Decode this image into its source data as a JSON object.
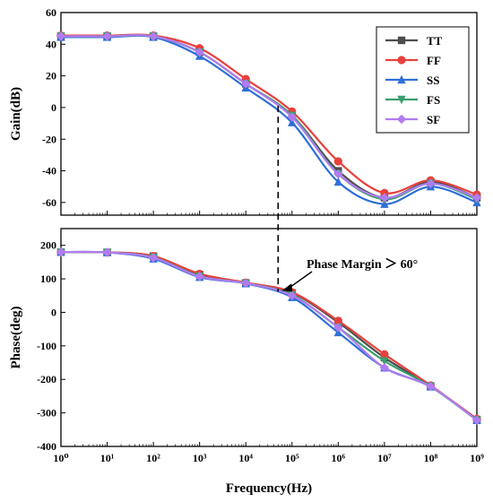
{
  "chart_data": [
    {
      "type": "line",
      "panel": "gain",
      "ylabel": "Gain(dB)",
      "xlabel": "",
      "xscale": "log",
      "xlim": [
        1,
        1000000000
      ],
      "ylim": [
        -68,
        60
      ],
      "yticks": [
        60,
        40,
        20,
        0,
        -20,
        -40,
        -60
      ],
      "legend_position": "top-right",
      "series": [
        {
          "name": "TT",
          "color": "#4d4d4d",
          "marker": "square",
          "x": [
            1,
            10,
            100,
            1000,
            10000,
            100000,
            1000000,
            10000000,
            100000000,
            1000000000
          ],
          "y": [
            45,
            45,
            45,
            35,
            15,
            -5,
            -40,
            -57,
            -47,
            -57
          ]
        },
        {
          "name": "FF",
          "color": "#e8413c",
          "marker": "circle",
          "x": [
            1,
            10,
            100,
            1000,
            10000,
            100000,
            1000000,
            10000000,
            100000000,
            1000000000
          ],
          "y": [
            45.5,
            45.5,
            45.5,
            37.5,
            18,
            -2.5,
            -34,
            -54,
            -46,
            -55
          ]
        },
        {
          "name": "SS",
          "color": "#2f6fd6",
          "marker": "triangle-up",
          "x": [
            1,
            10,
            100,
            1000,
            10000,
            100000,
            1000000,
            10000000,
            100000000,
            1000000000
          ],
          "y": [
            44.5,
            44.5,
            44.5,
            32.5,
            12.5,
            -9.5,
            -47,
            -61,
            -50,
            -60
          ]
        },
        {
          "name": "FS",
          "color": "#3a9e6f",
          "marker": "triangle-down",
          "x": [
            1,
            10,
            100,
            1000,
            10000,
            100000,
            1000000,
            10000000,
            100000000,
            1000000000
          ],
          "y": [
            45,
            45,
            45,
            35,
            15,
            -5,
            -42,
            -58,
            -48,
            -58
          ]
        },
        {
          "name": "SF",
          "color": "#b07cf0",
          "marker": "diamond",
          "x": [
            1,
            10,
            100,
            1000,
            10000,
            100000,
            1000000,
            10000000,
            100000000,
            1000000000
          ],
          "y": [
            45,
            45,
            45,
            35,
            15,
            -6,
            -42,
            -57,
            -48,
            -57
          ]
        }
      ]
    },
    {
      "type": "line",
      "panel": "phase",
      "ylabel": "Phase(deg)",
      "xlabel": "Frequency(Hz)",
      "xscale": "log",
      "xlim": [
        1,
        1000000000
      ],
      "ylim": [
        -400,
        250
      ],
      "yticks": [
        200,
        100,
        0,
        -100,
        -200,
        -300,
        -400
      ],
      "xtick_labels": [
        "10⁰",
        "10¹",
        "10²",
        "10³",
        "10⁴",
        "10⁵",
        "10⁶",
        "10⁷",
        "10⁸",
        "10⁹"
      ],
      "annotation": "Phase Margin ＞ 60°",
      "marker_frequency": 50000,
      "series": [
        {
          "name": "TT",
          "color": "#4d4d4d",
          "marker": "square",
          "x": [
            1,
            10,
            100,
            1000,
            10000,
            100000,
            1000000,
            10000000,
            100000000,
            1000000000
          ],
          "y": [
            180,
            179,
            168,
            113,
            88,
            58,
            -30,
            -135,
            -220,
            -320
          ]
        },
        {
          "name": "FF",
          "color": "#e8413c",
          "marker": "circle",
          "x": [
            1,
            10,
            100,
            1000,
            10000,
            100000,
            1000000,
            10000000,
            100000000,
            1000000000
          ],
          "y": [
            180,
            179,
            168,
            115,
            89,
            60,
            -25,
            -125,
            -218,
            -318
          ]
        },
        {
          "name": "SS",
          "color": "#2f6fd6",
          "marker": "triangle-up",
          "x": [
            1,
            10,
            100,
            1000,
            10000,
            100000,
            1000000,
            10000000,
            100000000,
            1000000000
          ],
          "y": [
            180,
            179,
            160,
            105,
            86,
            45,
            -60,
            -165,
            -222,
            -322
          ]
        },
        {
          "name": "FS",
          "color": "#3a9e6f",
          "marker": "triangle-down",
          "x": [
            1,
            10,
            100,
            1000,
            10000,
            100000,
            1000000,
            10000000,
            100000000,
            1000000000
          ],
          "y": [
            180,
            179,
            164,
            108,
            87,
            52,
            -45,
            -145,
            -221,
            -321
          ]
        },
        {
          "name": "SF",
          "color": "#b07cf0",
          "marker": "diamond",
          "x": [
            1,
            10,
            100,
            1000,
            10000,
            100000,
            1000000,
            10000000,
            100000000,
            1000000000
          ],
          "y": [
            180,
            179,
            163,
            107,
            87,
            50,
            -45,
            -165,
            -221,
            -322
          ]
        }
      ]
    }
  ]
}
